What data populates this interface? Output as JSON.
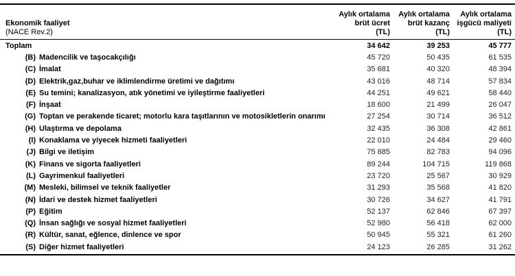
{
  "table": {
    "left_header": {
      "title": "Ekonomik faaliyet",
      "subtitle": "(NACE Rev.2)"
    },
    "columns": [
      {
        "line1": "Aylık ortalama",
        "line2": "brüt ücret",
        "line3": "(TL)"
      },
      {
        "line1": "Aylık ortalama",
        "line2": "brüt kazanç",
        "line3": "(TL)"
      },
      {
        "line1": "Aylık ortalama",
        "line2": "işgücü maliyeti",
        "line3": "(TL)"
      }
    ],
    "total_row": {
      "label": "Toplam",
      "v1": "34 642",
      "v2": "39 253",
      "v3": "45 777"
    },
    "rows": [
      {
        "code": "(B)",
        "label": "Madencilik ve taşocakçılığı",
        "v1": "45 720",
        "v2": "50 435",
        "v3": "61 535"
      },
      {
        "code": "(C)",
        "label": "İmalat",
        "v1": "35 681",
        "v2": "40 320",
        "v3": "48 394"
      },
      {
        "code": "(D)",
        "label": "Elektrik,gaz,buhar ve iklimlendirme üretimi ve dağıtımı",
        "v1": "43 016",
        "v2": "48 714",
        "v3": "57 834"
      },
      {
        "code": "(E)",
        "label": "Su temini; kanalizasyon, atık yönetimi ve iyileştirme faaliyetleri",
        "v1": "44 251",
        "v2": "49 621",
        "v3": "58 440"
      },
      {
        "code": "(F)",
        "label": "İnşaat",
        "v1": "18 600",
        "v2": "21 499",
        "v3": "26 047"
      },
      {
        "code": "(G)",
        "label": "Toptan ve perakende ticaret; motorlu kara taşıtlarının ve motosikletlerin onarımı",
        "v1": "27 254",
        "v2": "30 714",
        "v3": "36 512"
      },
      {
        "code": "(H)",
        "label": "Ulaştırma ve depolama",
        "v1": "32 435",
        "v2": "36 308",
        "v3": "42 861"
      },
      {
        "code": "(I)",
        "label": "Konaklama ve yiyecek hizmeti faaliyetleri",
        "v1": "22 010",
        "v2": "24 484",
        "v3": "29 460"
      },
      {
        "code": "(J)",
        "label": "Bilgi ve iletişim",
        "v1": "75 885",
        "v2": "82 783",
        "v3": "94 096"
      },
      {
        "code": "(K)",
        "label": "Finans ve sigorta faaliyetleri",
        "v1": "89 244",
        "v2": "104 715",
        "v3": "119 868"
      },
      {
        "code": "(L)",
        "label": "Gayrimenkul faaliyetleri",
        "v1": "23 720",
        "v2": "25 567",
        "v3": "30 929"
      },
      {
        "code": "(M)",
        "label": "Mesleki, bilimsel ve teknik faaliyetler",
        "v1": "31 293",
        "v2": "35 568",
        "v3": "41 820"
      },
      {
        "code": "(N)",
        "label": "İdari ve destek hizmet faaliyetleri",
        "v1": "30 726",
        "v2": "34 627",
        "v3": "41 791"
      },
      {
        "code": "(P)",
        "label": "Eğitim",
        "v1": "52 137",
        "v2": "62 846",
        "v3": "67 397"
      },
      {
        "code": "(Q)",
        "label": "İnsan sağlığı ve sosyal hizmet faaliyetleri",
        "v1": "52 980",
        "v2": "56 418",
        "v3": "62 000"
      },
      {
        "code": "(R)",
        "label": "Kültür, sanat, eğlence, dinlence ve spor",
        "v1": "50 945",
        "v2": "55 321",
        "v3": "61 260"
      },
      {
        "code": "(S)",
        "label": "Diğer hizmet faaliyetleri",
        "v1": "24 123",
        "v2": "26 285",
        "v3": "31 262"
      }
    ]
  }
}
